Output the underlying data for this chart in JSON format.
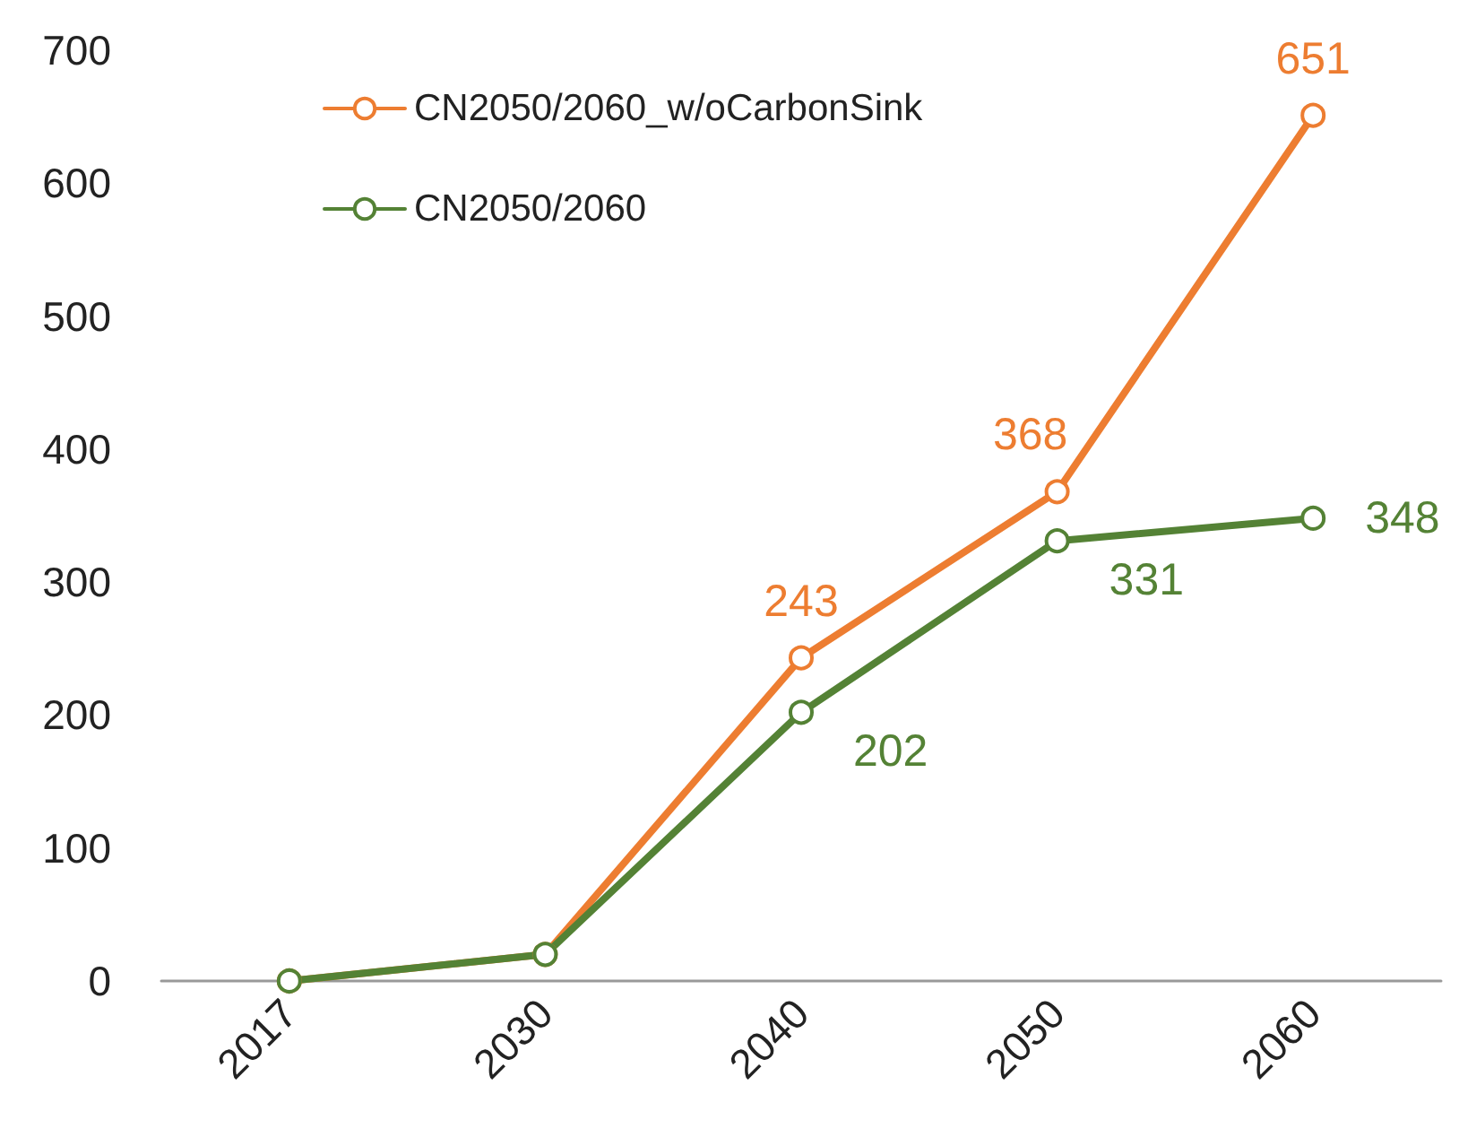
{
  "chart_data": {
    "type": "line",
    "categories": [
      "2017",
      "2030",
      "2040",
      "2050",
      "2060"
    ],
    "series": [
      {
        "name": "CN2050/2060_w/oCarbonSink",
        "color": "#ed7d31",
        "values": [
          0,
          20,
          243,
          368,
          651
        ],
        "value_labels": [
          null,
          null,
          "243",
          "368",
          "651"
        ]
      },
      {
        "name": "CN2050/2060",
        "color": "#548235",
        "values": [
          0,
          20,
          202,
          331,
          348
        ],
        "value_labels": [
          null,
          null,
          "202",
          "331",
          "348"
        ]
      }
    ],
    "ylim": [
      0,
      700
    ],
    "yticks": [
      0,
      100,
      200,
      300,
      400,
      500,
      600,
      700
    ],
    "grid": false,
    "legend": "top left",
    "marker": "circle",
    "line_style": "solid"
  }
}
